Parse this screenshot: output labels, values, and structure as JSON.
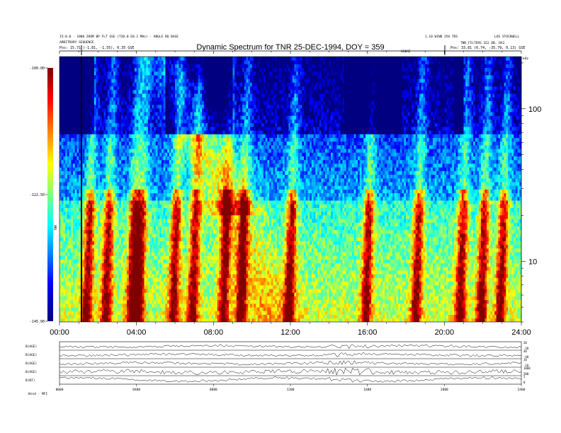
{
  "header": {
    "title": "Dynamic Spectrum for TNR 25-DEC-1994, DOY = 359",
    "left_line1": "15:0.0 - 1000 ZOOM BP FLT GSE (T20.0 E0.2 MHz) - ANGLE BQ BASE",
    "left_line2": "ARBITRARY SEQUENCE",
    "left_line3": "Pos: 15.71 (-1.81, -1.55), 0.35 GSE",
    "right_line1": "1.10 WIND 256 TDS",
    "right_line2": "TNR_FILTERS 1E2 DB, DA1",
    "right_line3": "Pos: 33.81 (6.74, -35.79, 0.13) GSE",
    "right_corner": "LOS STOCKWELL",
    "mid_marker": "GEOSE",
    "khz_label": "kHz"
  },
  "colorbar": {
    "title": "TNR",
    "ticks": [
      "-100.00",
      "-122.50",
      "-145.00"
    ],
    "colors": [
      "#00007f",
      "#0000ff",
      "#00ffff",
      "#ffff00",
      "#ff0000",
      "#7f0000"
    ]
  },
  "panels": {
    "labels": [
      "B(AGE)",
      "B(AGE)",
      "B(AGE)",
      "B(AGE)",
      "B(NT)"
    ],
    "right_ticks": [
      [
        "20",
        "-20"
      ],
      [
        "40",
        "-40"
      ],
      [
        "10",
        "-10"
      ],
      [
        "1000",
        "500"
      ],
      [
        "5",
        "0"
      ]
    ],
    "x_ticks": [
      "0000",
      "0400",
      "0800",
      "1200",
      "1600",
      "2000",
      "2400"
    ],
    "bottom_left": "Wind - MFI"
  },
  "chart_data": {
    "type": "heatmap",
    "title": "Dynamic Spectrum for TNR 25-DEC-1994, DOY = 359",
    "xlabel": "",
    "ylabel": "kHz",
    "x_ticks": [
      "00:00",
      "04:00",
      "08:00",
      "12:00",
      "16:00",
      "20:00",
      "24:00"
    ],
    "xlim_hours": [
      0,
      24
    ],
    "y_scale": "log",
    "ylim_khz": [
      4,
      220
    ],
    "y_ticks": [
      "100",
      "10"
    ],
    "colorscale": "jet",
    "zlim": [
      -145.0,
      -100.0
    ],
    "features": [
      {
        "name": "drifting type III bursts",
        "x_hours": [
          1.5,
          2.5,
          3.8,
          4.2,
          6.0,
          7.0,
          8.6,
          9.5,
          12.0,
          16.0,
          18.6,
          20.9,
          22.0,
          23.0
        ],
        "intensity_db": -103
      },
      {
        "name": "low-frequency emission band",
        "y_khz": [
          5,
          25
        ],
        "intensity_db": -115
      },
      {
        "name": "quiet high-frequency background",
        "y_khz": [
          70,
          220
        ],
        "intensity_db": -140
      }
    ]
  }
}
